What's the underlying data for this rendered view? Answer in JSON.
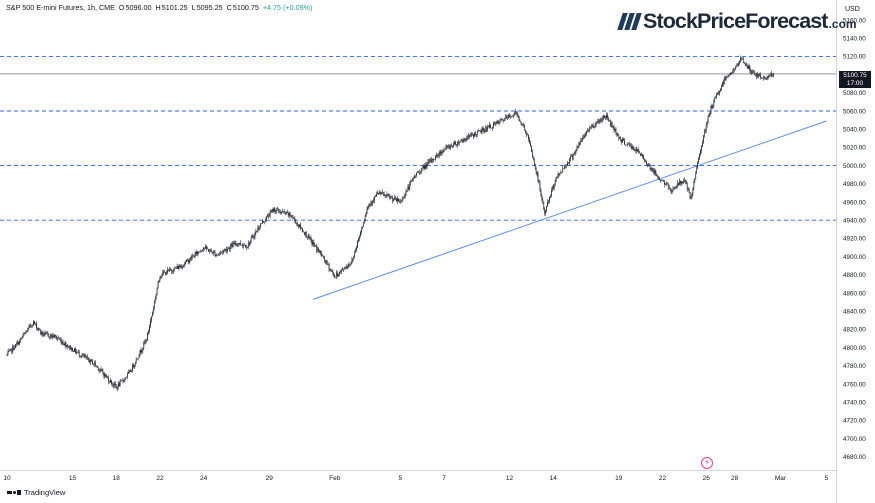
{
  "header": {
    "symbol": "S&P 500 E-mini Futures, 1h, CME",
    "open_label": "O",
    "open": "5096.00",
    "high_label": "H",
    "high": "5101.25",
    "low_label": "L",
    "low": "5095.25",
    "close_label": "C",
    "close": "5100.75",
    "change": "+4.75 (+0.09%)"
  },
  "logo": {
    "name": "StockPriceForecast",
    "domain": ".com"
  },
  "branding": {
    "platform": "TradingView"
  },
  "currency": "USD",
  "last_price": {
    "value": "5100.75",
    "countdown": "17:00"
  },
  "colors": {
    "candle": "#131722",
    "support_dash": "#2962ff",
    "trendline": "#5b8def",
    "background": "#ffffff"
  },
  "chart_data": {
    "type": "candlestick",
    "title": "S&P 500 E-mini Futures, 1h, CME",
    "ylim": [
      4670,
      5170
    ],
    "y_ticks": [
      "5160.00",
      "5140.00",
      "5120.00",
      "5100.00",
      "5080.00",
      "5060.00",
      "5040.00",
      "5020.00",
      "5000.00",
      "4980.00",
      "4960.00",
      "4940.00",
      "4920.00",
      "4900.00",
      "4880.00",
      "4860.00",
      "4840.00",
      "4820.00",
      "4800.00",
      "4780.00",
      "4760.00",
      "4740.00",
      "4720.00",
      "4700.00",
      "4680.00"
    ],
    "x_ticks": [
      "10",
      "15",
      "18",
      "22",
      "24",
      "29",
      "Feb",
      "5",
      "7",
      "12",
      "14",
      "19",
      "22",
      "26",
      "28",
      "Mar",
      "5"
    ],
    "x_tick_trading_days": [
      0,
      3,
      5,
      7,
      9,
      12,
      15,
      18,
      20,
      23,
      25,
      28,
      30,
      32,
      33.3,
      35.4,
      37.5
    ],
    "series_anchors": [
      {
        "day": 0,
        "price": 4792
      },
      {
        "day": 0.5,
        "price": 4805
      },
      {
        "day": 1.2,
        "price": 4828
      },
      {
        "day": 1.6,
        "price": 4815
      },
      {
        "day": 2.2,
        "price": 4812
      },
      {
        "day": 3,
        "price": 4798
      },
      {
        "day": 4,
        "price": 4782
      },
      {
        "day": 5,
        "price": 4756
      },
      {
        "day": 5.6,
        "price": 4772
      },
      {
        "day": 6.4,
        "price": 4810
      },
      {
        "day": 7,
        "price": 4880
      },
      {
        "day": 8,
        "price": 4890
      },
      {
        "day": 9,
        "price": 4910
      },
      {
        "day": 9.6,
        "price": 4902
      },
      {
        "day": 10.5,
        "price": 4915
      },
      {
        "day": 11,
        "price": 4912
      },
      {
        "day": 11.6,
        "price": 4935
      },
      {
        "day": 12.2,
        "price": 4952
      },
      {
        "day": 13,
        "price": 4945
      },
      {
        "day": 14.3,
        "price": 4905
      },
      {
        "day": 15,
        "price": 4878
      },
      {
        "day": 15.8,
        "price": 4895
      },
      {
        "day": 16.5,
        "price": 4955
      },
      {
        "day": 17,
        "price": 4970
      },
      {
        "day": 18,
        "price": 4960
      },
      {
        "day": 18.7,
        "price": 4990
      },
      {
        "day": 19.4,
        "price": 5005
      },
      {
        "day": 20,
        "price": 5018
      },
      {
        "day": 21,
        "price": 5030
      },
      {
        "day": 22.3,
        "price": 5045
      },
      {
        "day": 23.3,
        "price": 5058
      },
      {
        "day": 23.8,
        "price": 5035
      },
      {
        "day": 24.3,
        "price": 4985
      },
      {
        "day": 24.6,
        "price": 4948
      },
      {
        "day": 25.1,
        "price": 4985
      },
      {
        "day": 25.9,
        "price": 5012
      },
      {
        "day": 26.6,
        "price": 5040
      },
      {
        "day": 27.4,
        "price": 5055
      },
      {
        "day": 28.1,
        "price": 5028
      },
      {
        "day": 28.9,
        "price": 5015
      },
      {
        "day": 29.7,
        "price": 4990
      },
      {
        "day": 30.4,
        "price": 4973
      },
      {
        "day": 31,
        "price": 4985
      },
      {
        "day": 31.3,
        "price": 4962
      },
      {
        "day": 31.7,
        "price": 5015
      },
      {
        "day": 32.2,
        "price": 5062
      },
      {
        "day": 32.9,
        "price": 5098
      },
      {
        "day": 33.3,
        "price": 5105
      },
      {
        "day": 33.6,
        "price": 5118
      },
      {
        "day": 34.1,
        "price": 5102
      },
      {
        "day": 34.6,
        "price": 5096
      },
      {
        "day": 35.1,
        "price": 5101
      }
    ],
    "horizontal_levels": [
      5120,
      5060,
      5000,
      4940
    ],
    "last_price_level": 5100.75,
    "trendline": {
      "start": {
        "day": 14,
        "price": 4853
      },
      "end": {
        "day": 37.5,
        "price": 5049
      }
    }
  }
}
